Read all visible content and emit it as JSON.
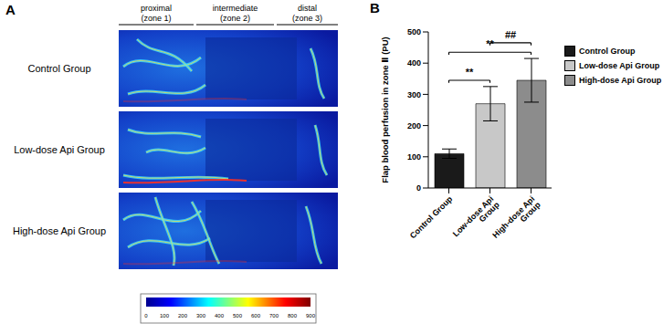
{
  "chart_data": [
    {
      "type": "image_panel",
      "panel_label": "A",
      "zones": [
        "proximal",
        "intermediate",
        "distal"
      ],
      "zone_labels": [
        "(zone 1)",
        "(zone 2)",
        "(zone 3)"
      ],
      "rows": [
        "Control Group",
        "Low-dose Api Group",
        "High-dose Api Group"
      ],
      "colorbar": {
        "range": [
          0,
          900
        ],
        "ticks": [
          0,
          100,
          200,
          300,
          400,
          500,
          600,
          700,
          800,
          900
        ]
      }
    },
    {
      "type": "bar",
      "panel_label": "B",
      "categories": [
        "Control Group",
        "Low-dose Api Group",
        "High-dose Api Group"
      ],
      "values": [
        110,
        270,
        345
      ],
      "errors": [
        15,
        55,
        70
      ],
      "colors": [
        "#1a1a1a",
        "#c8c8c8",
        "#8c8c8c"
      ],
      "ylim": [
        0,
        500
      ],
      "yticks": [
        0,
        100,
        200,
        300,
        400,
        500
      ],
      "ylabel": "Flap blood perfusion in zone Ⅱ (PU)",
      "legend": "right",
      "annotations": [
        {
          "text": "**",
          "from": "Control Group",
          "to": "Low-dose Api Group"
        },
        {
          "text": "**",
          "from": "Control Group",
          "to": "High-dose Api Group"
        },
        {
          "text": "##",
          "from": "Low-dose Api Group",
          "to": "High-dose Api Group"
        }
      ]
    }
  ]
}
